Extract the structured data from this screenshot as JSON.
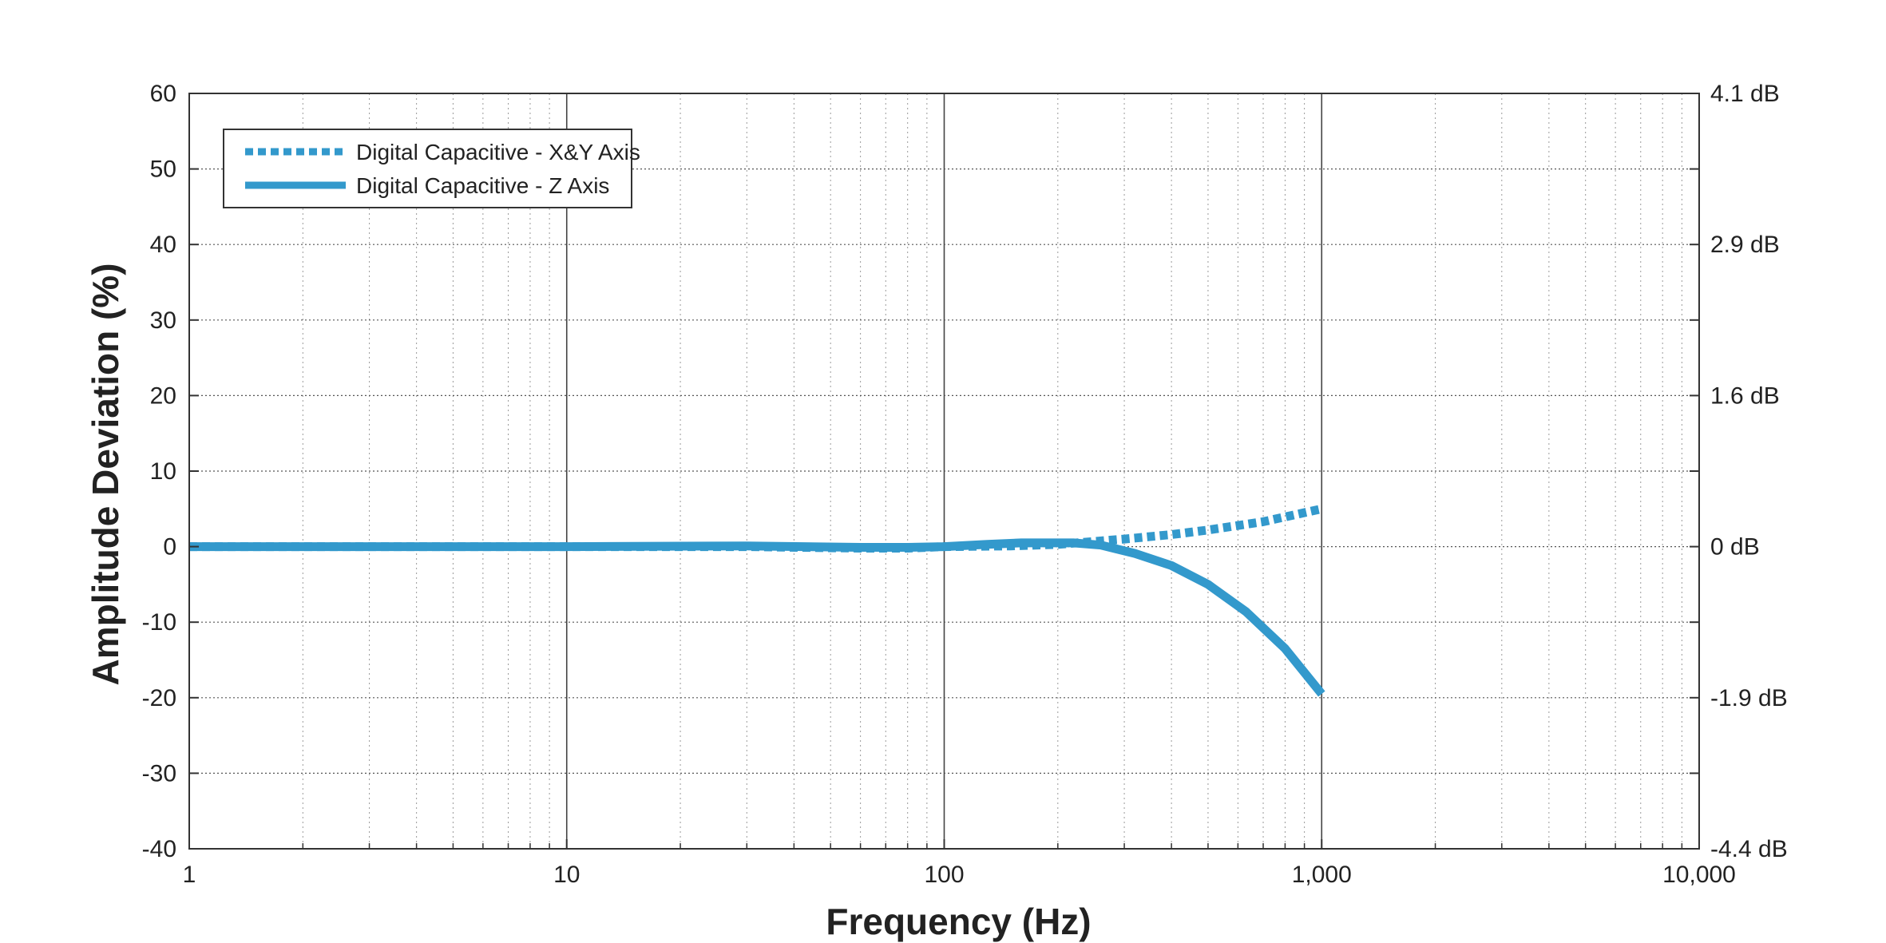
{
  "chart_data": {
    "type": "line",
    "xlabel": "Frequency (Hz)",
    "ylabel": "Amplitude Deviation (%)",
    "x_scale": "log",
    "xlim": [
      1,
      10000
    ],
    "ylim": [
      -40,
      60
    ],
    "grid": true,
    "legend_position": "top-left",
    "x_tick_values": [
      1,
      10,
      100,
      1000,
      10000
    ],
    "x_tick_labels": [
      "1",
      "10",
      "100",
      "1,000",
      "10,000"
    ],
    "y_tick_values": [
      -40,
      -30,
      -20,
      -10,
      0,
      10,
      20,
      30,
      40,
      50,
      60
    ],
    "y_tick_labels": [
      "-40",
      "-30",
      "-20",
      "-10",
      "0",
      "10",
      "20",
      "30",
      "40",
      "50",
      "60"
    ],
    "right_axis_ticks": [
      {
        "y": 60,
        "label": "4.1 dB"
      },
      {
        "y": 40,
        "label": "2.9 dB"
      },
      {
        "y": 20,
        "label": "1.6 dB"
      },
      {
        "y": 0,
        "label": "0 dB"
      },
      {
        "y": -20,
        "label": "-1.9 dB"
      },
      {
        "y": -40,
        "label": "-4.4 dB"
      }
    ],
    "series": [
      {
        "name": "Digital Capacitive - X&Y Axis",
        "style": "dotted",
        "color": "#3399cc",
        "x": [
          1,
          10,
          30,
          60,
          80,
          100,
          150,
          200,
          300,
          400,
          500,
          700,
          1000
        ],
        "y": [
          0,
          0,
          0,
          -0.2,
          -0.2,
          0,
          0.1,
          0.3,
          1.0,
          1.6,
          2.2,
          3.3,
          5.0
        ]
      },
      {
        "name": "Digital Capacitive - Z Axis",
        "style": "solid",
        "color": "#3399cc",
        "x": [
          1,
          5,
          10,
          30,
          60,
          80,
          100,
          130,
          160,
          220,
          260,
          320,
          400,
          500,
          630,
          800,
          1000
        ],
        "y": [
          0,
          0,
          0,
          0.1,
          -0.1,
          -0.1,
          0,
          0.3,
          0.5,
          0.5,
          0.2,
          -0.9,
          -2.5,
          -5.0,
          -8.6,
          -13.5,
          -19.5
        ]
      }
    ]
  }
}
